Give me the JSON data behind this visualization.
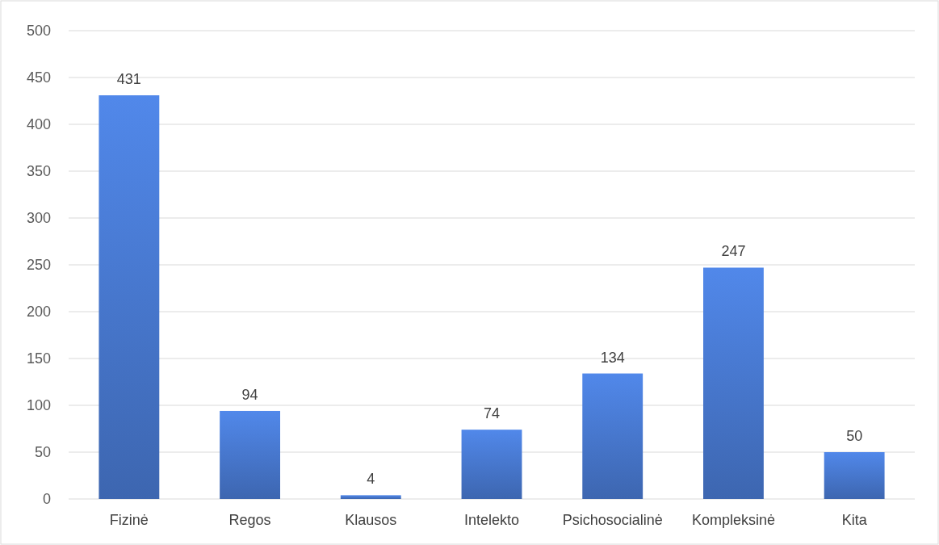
{
  "chart_data": {
    "type": "bar",
    "categories": [
      "Fizinė",
      "Regos",
      "Klausos",
      "Intelekto",
      "Psichosocialinė",
      "Kompleksinė",
      "Kita"
    ],
    "values": [
      431,
      94,
      4,
      74,
      134,
      247,
      50
    ],
    "color": "#4472c4",
    "ylim": [
      0,
      500
    ],
    "yticks": [
      0,
      50,
      100,
      150,
      200,
      250,
      300,
      350,
      400,
      450,
      500
    ],
    "grid": "y",
    "data_labels": true
  }
}
